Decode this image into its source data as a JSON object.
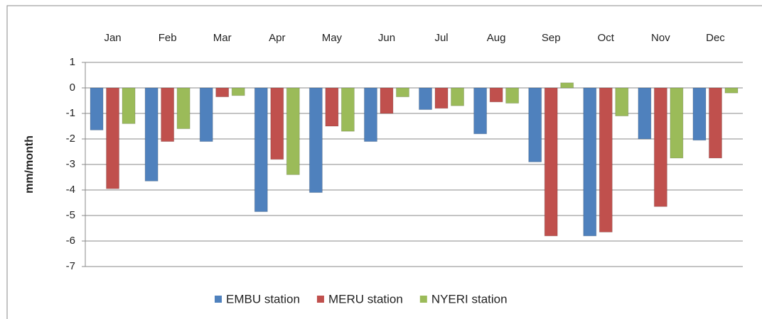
{
  "chart_data": {
    "type": "bar",
    "y_label": "mm/month",
    "categories": [
      "Jan",
      "Feb",
      "Mar",
      "Apr",
      "May",
      "Jun",
      "Jul",
      "Aug",
      "Sep",
      "Oct",
      "Nov",
      "Dec"
    ],
    "series": [
      {
        "name": "EMBU station",
        "color": "#4f81bd",
        "values": [
          -1.65,
          -3.65,
          -2.1,
          -4.85,
          -4.1,
          -2.1,
          -0.85,
          -1.8,
          -2.9,
          -5.8,
          -2.0,
          -2.05
        ]
      },
      {
        "name": "MERU station",
        "color": "#c0504d",
        "values": [
          -3.95,
          -2.1,
          -0.35,
          -2.8,
          -1.5,
          -1.0,
          -0.8,
          -0.55,
          -5.8,
          -5.65,
          -4.65,
          -2.75
        ]
      },
      {
        "name": "NYERI station",
        "color": "#9bbb59",
        "values": [
          -1.4,
          -1.6,
          -0.3,
          -3.4,
          -1.7,
          -0.35,
          -0.7,
          -0.6,
          0.2,
          -1.1,
          -2.75,
          -0.2
        ]
      }
    ],
    "ylim": [
      -7,
      1
    ],
    "yticks": [
      1,
      0,
      -1,
      -2,
      -3,
      -4,
      -5,
      -6,
      -7
    ],
    "grid": true,
    "legend": "bottom"
  }
}
